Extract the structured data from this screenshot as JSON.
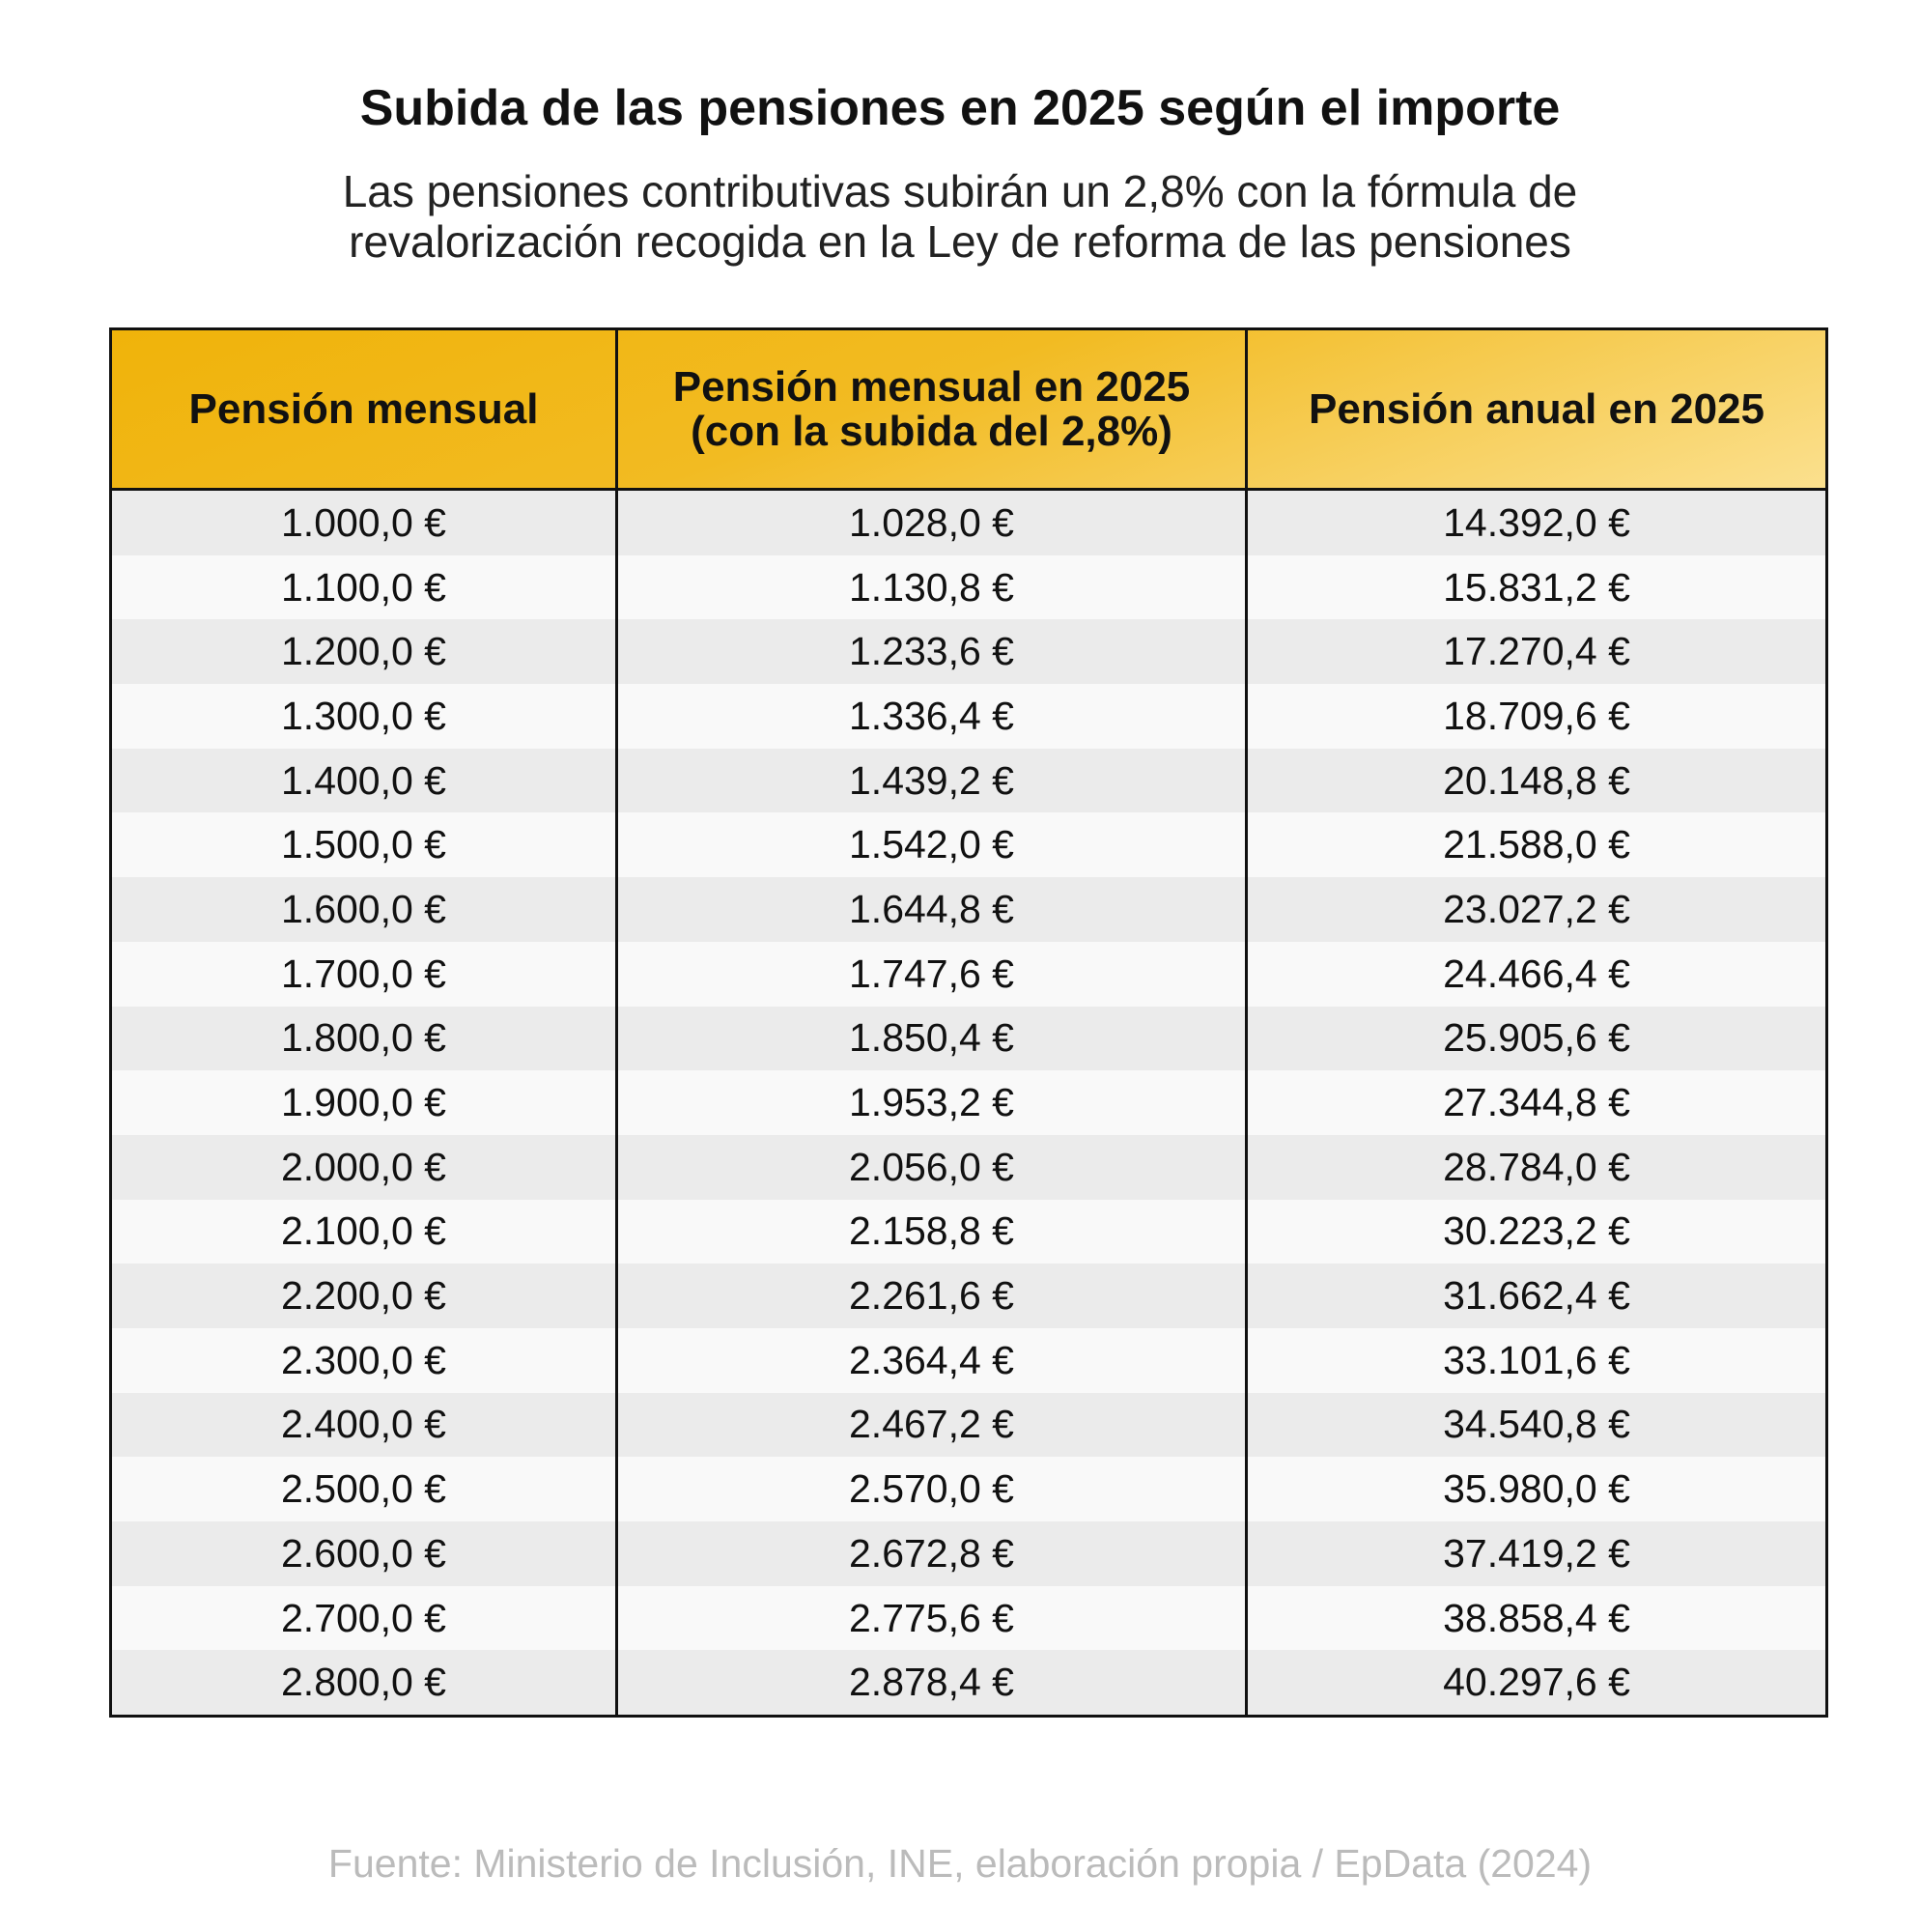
{
  "header": {
    "title": "Subida de las pensiones en 2025 según el importe",
    "subtitle": [
      "Las pensiones contributivas subirán un 2,8% con la fórmula de",
      "revalorización recogida en la Ley de reforma de las pensiones"
    ]
  },
  "table": {
    "columns": [
      [
        "Pensión mensual"
      ],
      [
        "Pensión mensual en 2025",
        "(con la subida del 2,8%)"
      ],
      [
        "Pensión anual en 2025"
      ]
    ],
    "rows": [
      [
        "1.000,0 €",
        "1.028,0 €",
        "14.392,0 €"
      ],
      [
        "1.100,0 €",
        "1.130,8 €",
        "15.831,2 €"
      ],
      [
        "1.200,0 €",
        "1.233,6 €",
        "17.270,4 €"
      ],
      [
        "1.300,0 €",
        "1.336,4 €",
        "18.709,6 €"
      ],
      [
        "1.400,0 €",
        "1.439,2 €",
        "20.148,8 €"
      ],
      [
        "1.500,0 €",
        "1.542,0 €",
        "21.588,0 €"
      ],
      [
        "1.600,0 €",
        "1.644,8 €",
        "23.027,2 €"
      ],
      [
        "1.700,0 €",
        "1.747,6 €",
        "24.466,4 €"
      ],
      [
        "1.800,0 €",
        "1.850,4 €",
        "25.905,6 €"
      ],
      [
        "1.900,0 €",
        "1.953,2 €",
        "27.344,8 €"
      ],
      [
        "2.000,0 €",
        "2.056,0 €",
        "28.784,0 €"
      ],
      [
        "2.100,0 €",
        "2.158,8 €",
        "30.223,2 €"
      ],
      [
        "2.200,0 €",
        "2.261,6 €",
        "31.662,4 €"
      ],
      [
        "2.300,0 €",
        "2.364,4 €",
        "33.101,6 €"
      ],
      [
        "2.400,0 €",
        "2.467,2 €",
        "34.540,8 €"
      ],
      [
        "2.500,0 €",
        "2.570,0 €",
        "35.980,0 €"
      ],
      [
        "2.600,0 €",
        "2.672,8 €",
        "37.419,2 €"
      ],
      [
        "2.700,0 €",
        "2.775,6 €",
        "38.858,4 €"
      ],
      [
        "2.800,0 €",
        "2.878,4 €",
        "40.297,6 €"
      ]
    ]
  },
  "footer": {
    "source": "Fuente: Ministerio de Inclusión, INE, elaboración propia / EpData (2024)"
  }
}
